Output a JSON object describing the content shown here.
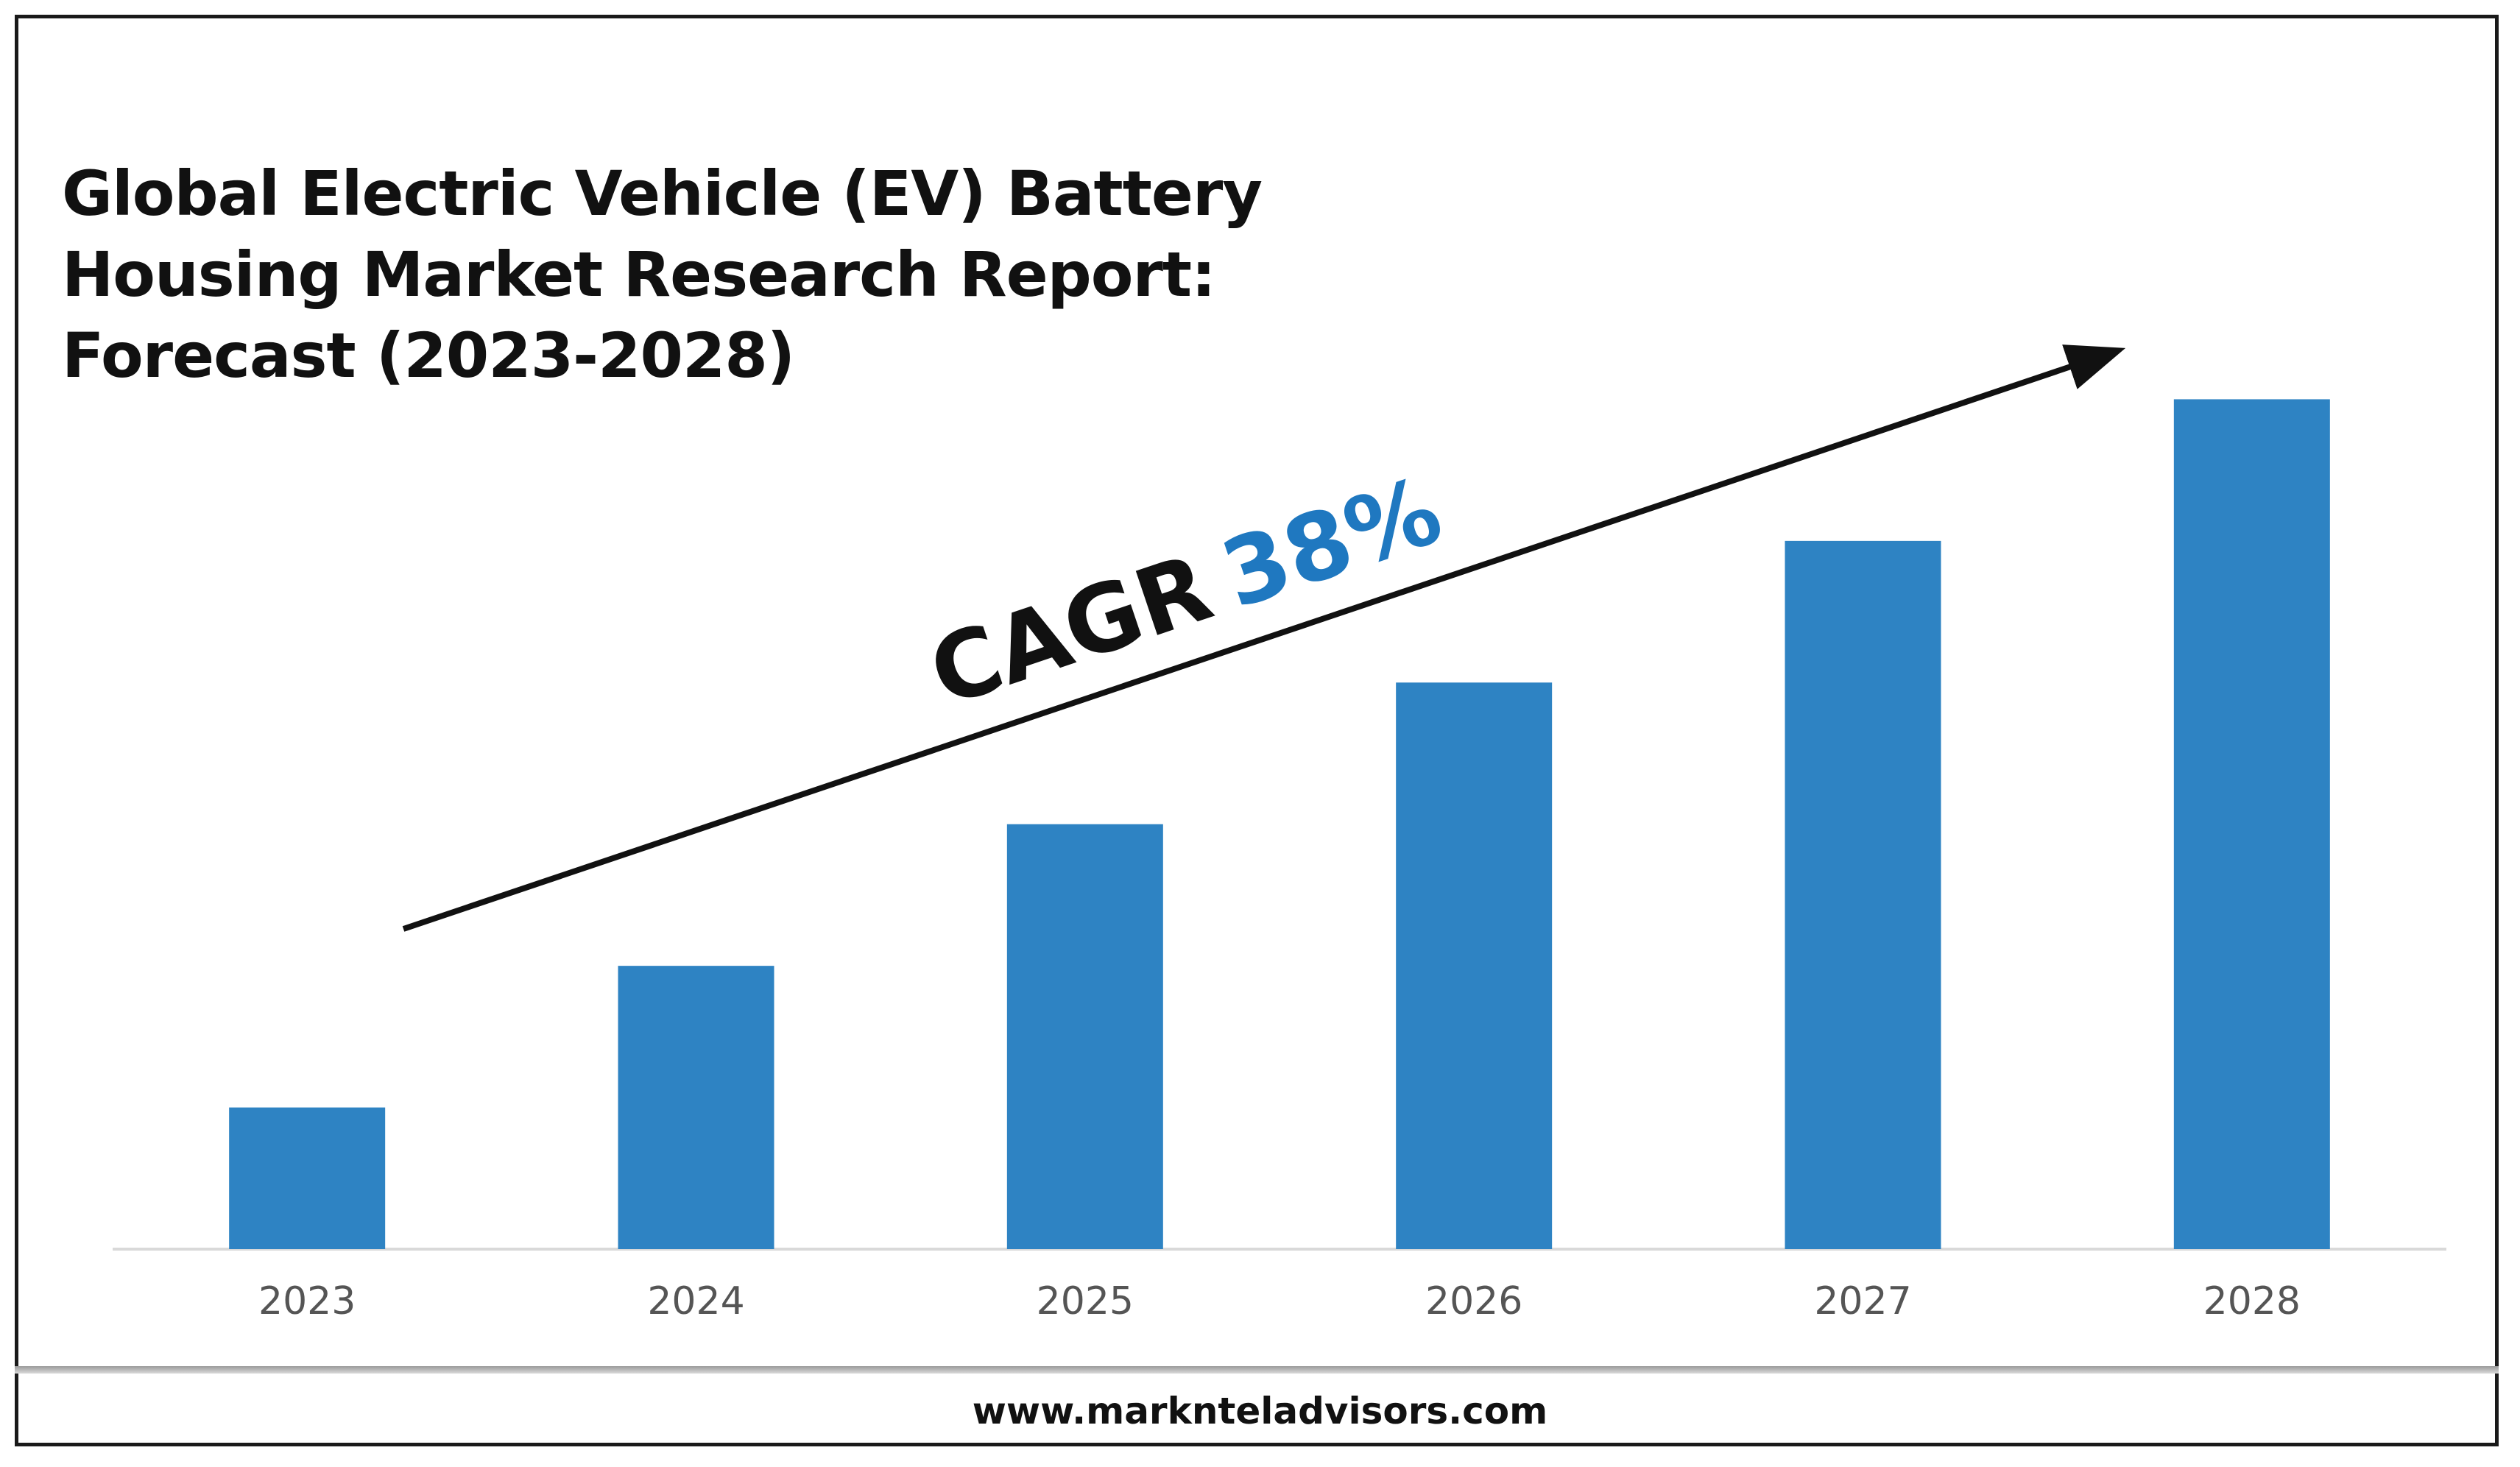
{
  "chart_data": {
    "type": "bar",
    "title": "Global Electric Vehicle (EV) Battery Housing Market Research Report: Forecast (2023-2028)",
    "title_lines": [
      "Global Electric Vehicle (EV) Battery",
      "Housing Market Research Report:",
      "Forecast (2023-2028)"
    ],
    "categories": [
      "2023",
      "2024",
      "2025",
      "2026",
      "2027",
      "2028"
    ],
    "values": [
      1.0,
      2.0,
      3.0,
      4.0,
      5.0,
      6.0
    ],
    "ylim": [
      0,
      7
    ],
    "bar_color": "#2e83c3",
    "grid": false,
    "legend": "none",
    "annotation": {
      "label": "CAGR",
      "value": "38%",
      "label_color": "#111111",
      "value_color": "#1f78c0"
    },
    "xlabel": "",
    "ylabel": ""
  },
  "footer": {
    "url": "www.marknteladvisors.com"
  }
}
